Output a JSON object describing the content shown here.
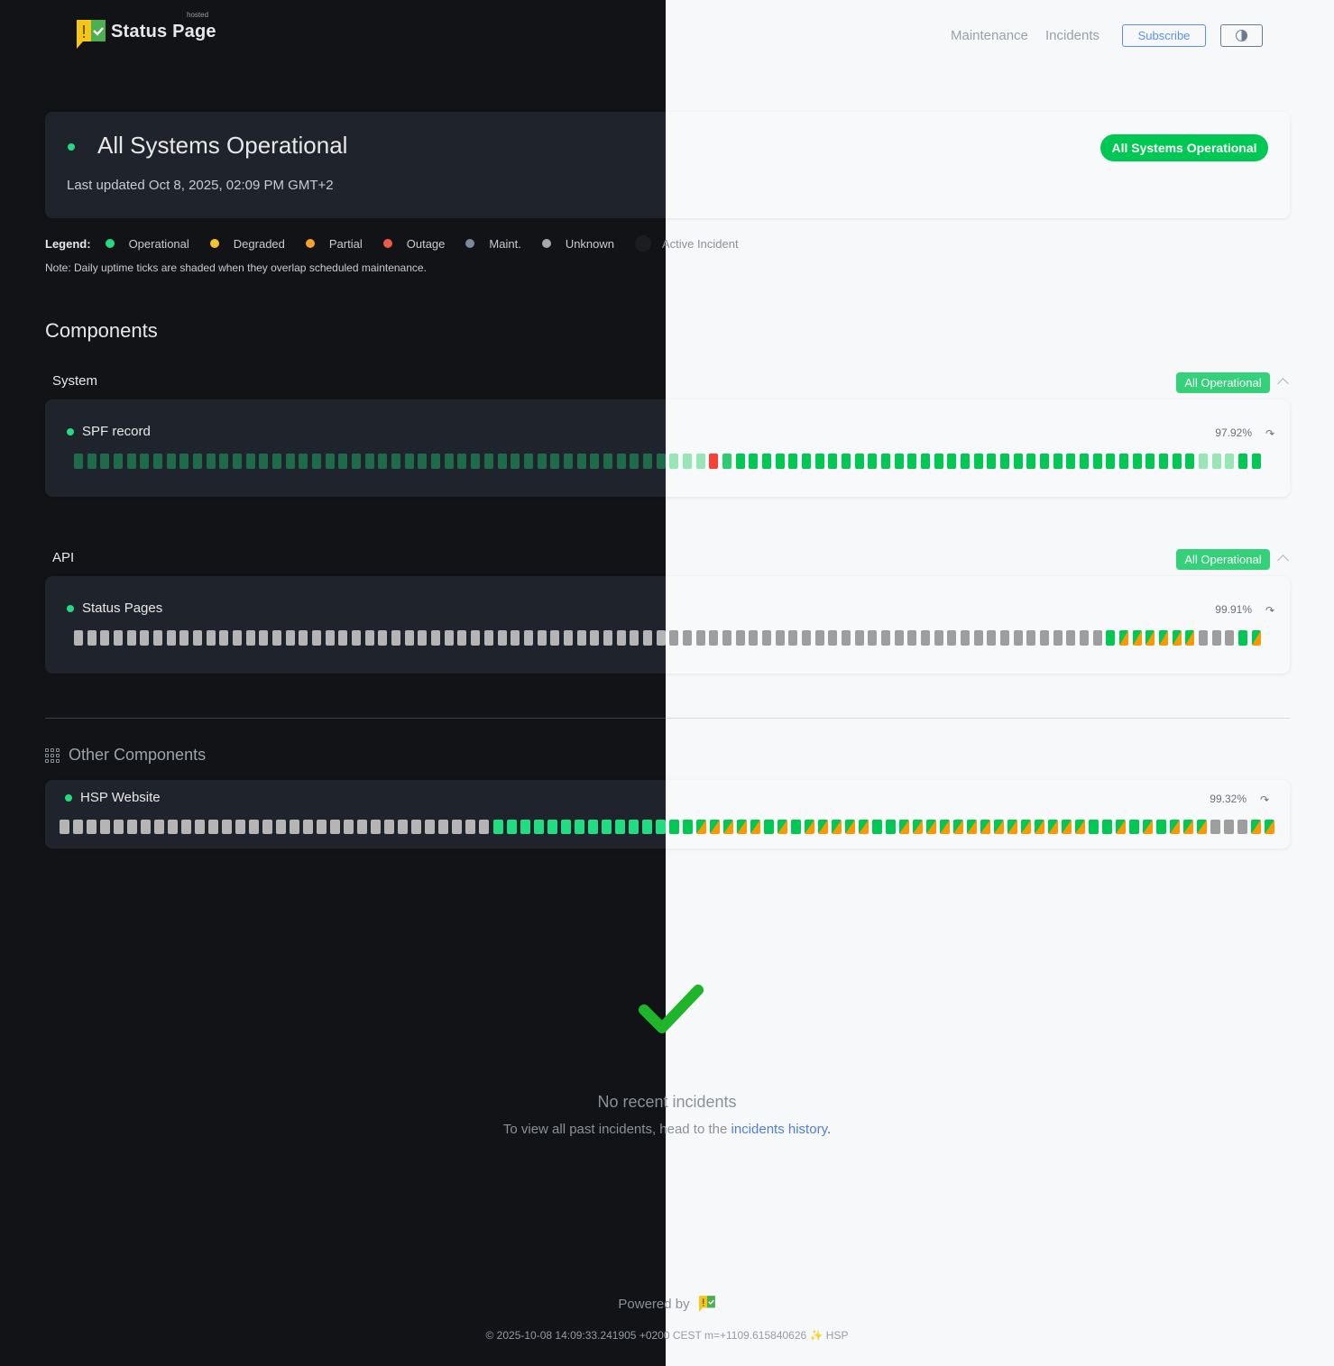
{
  "header": {
    "brand": "Status Page",
    "brand_tag": "hosted",
    "nav": [
      "Maintenance",
      "Incidents"
    ],
    "subscribe_label": "Subscribe",
    "theme_toggle_icon": "half-circle-icon"
  },
  "hero": {
    "title": "All Systems Operational",
    "last_updated": "Last updated Oct 8, 2025, 02:09 PM GMT+2",
    "badge": "All Systems Operational"
  },
  "legend": {
    "label": "Legend:",
    "items": [
      {
        "label": "Operational",
        "color": "#22dd7f"
      },
      {
        "label": "Degraded",
        "color": "#f7c52b"
      },
      {
        "label": "Partial",
        "color": "#f5a030"
      },
      {
        "label": "Outage",
        "color": "#f05a4a"
      },
      {
        "label": "Maint.",
        "color": "#7b8a98"
      },
      {
        "label": "Unknown",
        "color": "#a8a8a8"
      },
      {
        "label": "Active Incident",
        "color": "#1c1d1f"
      }
    ],
    "note": "Note: Daily uptime ticks are shaded when they overlap scheduled maintenance."
  },
  "components_title": "Components",
  "tick_colors": {
    "dark": {
      "op": "#22dd7f",
      "shaded": "#1e6b4a",
      "light-op": "#2ecc71",
      "outage": "#f44336",
      "unknown": "#b5b5b5",
      "partial_top": "#22dd7f",
      "partial_bottom": "#ff9800"
    },
    "light": {
      "op": "#00c853",
      "shaded": "#98e6b5",
      "light-op": "#2ecc71",
      "outage": "#f44336",
      "unknown": "#9e9e9e",
      "partial_top": "#00c853",
      "partial_bottom": "#ff9800"
    }
  },
  "groups": [
    {
      "name": "System",
      "status": "All Operational",
      "component": {
        "name": "SPF record",
        "uptime": "97.92%",
        "ticks": [
          [
            "shaded",
            48
          ],
          [
            "outage",
            1
          ],
          [
            "light-op",
            1
          ],
          [
            "op",
            35
          ],
          [
            "shaded",
            3
          ],
          [
            "op",
            2
          ]
        ]
      }
    },
    {
      "name": "API",
      "status": "All Operational",
      "component": {
        "name": "Status Pages",
        "uptime": "99.91%",
        "ticks": [
          [
            "unknown",
            78
          ],
          [
            "op",
            1
          ],
          [
            "partial",
            6
          ],
          [
            "unknown",
            3
          ],
          [
            "op",
            1
          ],
          [
            "partial",
            1
          ]
        ]
      }
    }
  ],
  "other": {
    "title": "Other Components",
    "component": {
      "name": "HSP Website",
      "uptime": "99.32%",
      "ticks": [
        [
          "unknown",
          32
        ],
        [
          "op",
          13
        ],
        [
          "op",
          2
        ],
        [
          "partial",
          5
        ],
        [
          "op",
          1
        ],
        [
          "partial",
          1
        ],
        [
          "op",
          1
        ],
        [
          "partial",
          5
        ],
        [
          "op",
          2
        ],
        [
          "partial",
          5
        ],
        [
          "partial",
          9
        ],
        [
          "op",
          2
        ],
        [
          "partial",
          1
        ],
        [
          "op",
          1
        ],
        [
          "partial",
          1
        ],
        [
          "op",
          1
        ],
        [
          "partial",
          3
        ],
        [
          "unknown",
          3
        ],
        [
          "partial",
          2
        ]
      ]
    }
  },
  "incidents": {
    "empty_title": "No recent incidents",
    "empty_text": "To view all past incidents, head to the ",
    "history_link": "incidents history",
    "period": "."
  },
  "footer": {
    "powered_by": "Powered by",
    "build": "© 2025-10-08 14:09:33.241905 +0200 CEST m=+1109.615840626 ✨ HSP"
  }
}
